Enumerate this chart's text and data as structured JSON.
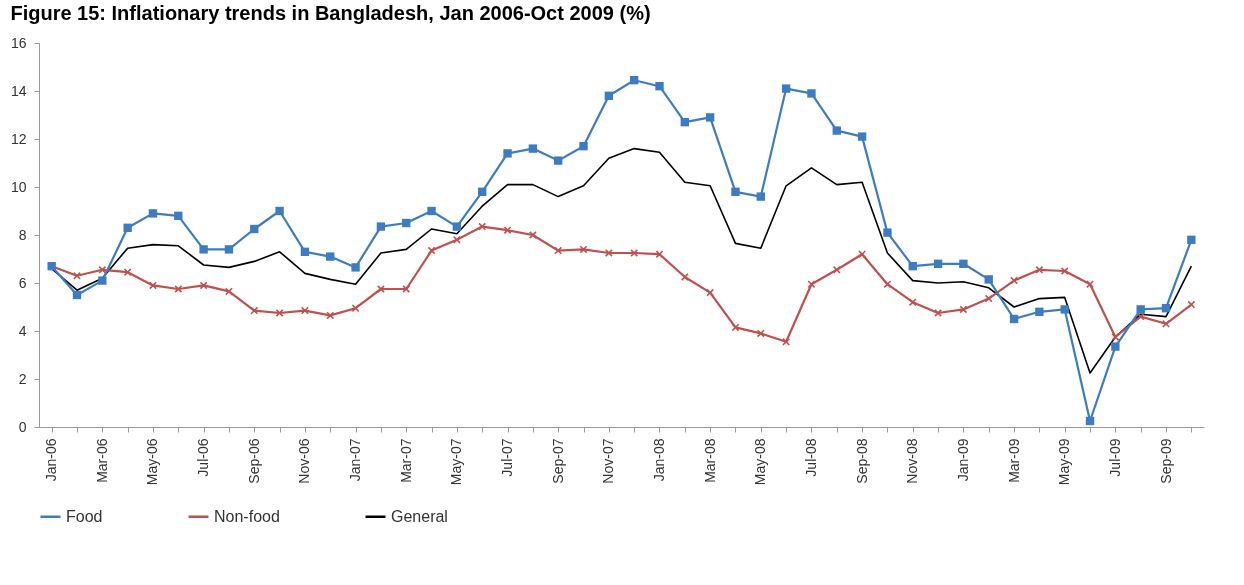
{
  "chart_data": {
    "type": "line",
    "title": "Figure 15: Inflationary trends in Bangladesh, Jan 2006-Oct 2009 (%)",
    "categories": [
      "Jan-06",
      null,
      "Mar-06",
      null,
      "May-06",
      null,
      "Jul-06",
      null,
      "Sep-06",
      null,
      "Nov-06",
      null,
      "Jan-07",
      null,
      "Mar-07",
      null,
      "May-07",
      null,
      "Jul-07",
      null,
      "Sep-07",
      null,
      "Nov-07",
      null,
      "Jan-08",
      null,
      "Mar-08",
      null,
      "May-08",
      null,
      "Jul-08",
      null,
      "Sep-08",
      null,
      "Nov-08",
      null,
      "Jan-09",
      null,
      "Mar-09",
      null,
      "May-09",
      null,
      "Jul-09",
      null,
      "Sep-09",
      null
    ],
    "series": [
      {
        "name": "Food",
        "color": "#3d7cc0",
        "marker": "square",
        "values": [
          6.7,
          5.5,
          6.1,
          8.3,
          8.9,
          8.8,
          7.4,
          7.4,
          8.25,
          9.0,
          7.3,
          7.1,
          6.65,
          8.35,
          8.5,
          9.0,
          8.35,
          9.8,
          11.4,
          11.6,
          11.1,
          11.7,
          13.8,
          14.45,
          14.2,
          12.7,
          12.9,
          9.8,
          9.6,
          14.1,
          13.9,
          12.35,
          12.1,
          8.1,
          6.7,
          6.8,
          6.8,
          6.15,
          4.5,
          4.8,
          4.9,
          0.25,
          3.35,
          4.9,
          4.95,
          7.8
        ]
      },
      {
        "name": "Non-food",
        "color": "#c0504d",
        "marker": "cross",
        "values": [
          6.7,
          6.3,
          6.55,
          6.45,
          5.9,
          5.75,
          5.9,
          5.65,
          4.85,
          4.75,
          4.85,
          4.65,
          4.95,
          5.75,
          5.75,
          7.35,
          7.8,
          8.35,
          8.2,
          8.0,
          7.35,
          7.4,
          7.25,
          7.25,
          7.2,
          6.25,
          5.6,
          4.15,
          3.9,
          3.55,
          5.95,
          6.55,
          7.2,
          5.95,
          5.2,
          4.75,
          4.9,
          5.35,
          6.1,
          6.55,
          6.5,
          5.95,
          3.75,
          4.6,
          4.3,
          5.1
        ]
      },
      {
        "name": "General",
        "color": "#000000",
        "marker": "none",
        "values": [
          6.6,
          5.7,
          6.2,
          7.45,
          7.6,
          7.55,
          6.75,
          6.65,
          6.9,
          7.3,
          6.4,
          6.15,
          5.95,
          7.25,
          7.4,
          8.25,
          8.05,
          9.2,
          10.1,
          10.1,
          9.6,
          10.05,
          11.2,
          11.6,
          11.45,
          10.2,
          10.05,
          7.65,
          7.45,
          10.05,
          10.8,
          10.1,
          10.2,
          7.25,
          6.1,
          6.0,
          6.05,
          5.8,
          5.0,
          5.35,
          5.4,
          2.25,
          3.75,
          4.7,
          4.6,
          6.7
        ]
      }
    ],
    "ylim": [
      0,
      16
    ],
    "yticks": [
      0,
      2,
      4,
      6,
      8,
      10,
      12,
      14,
      16
    ],
    "grid": false,
    "legend": "bottom"
  }
}
